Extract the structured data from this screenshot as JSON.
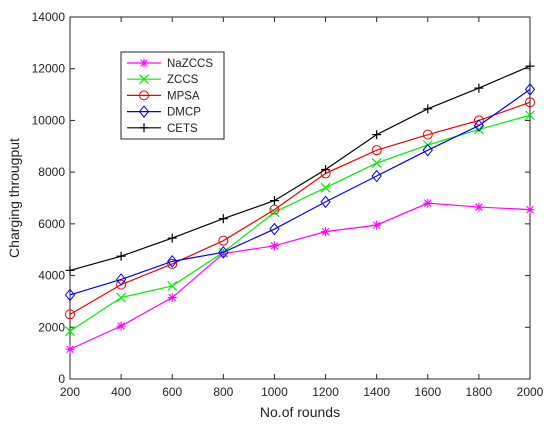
{
  "chart_data": {
    "type": "line",
    "title": "",
    "xlabel": "No.of rounds",
    "ylabel": "Charging througput",
    "x": [
      200,
      400,
      600,
      800,
      1000,
      1200,
      1400,
      1600,
      1800,
      2000
    ],
    "xlim": [
      200,
      2000
    ],
    "ylim": [
      0,
      14000
    ],
    "xticks": [
      "200",
      "400",
      "600",
      "800",
      "1000",
      "1200",
      "1400",
      "1600",
      "1800",
      "2000"
    ],
    "yticks": [
      "0",
      "2000",
      "4000",
      "6000",
      "8000",
      "10000",
      "12000",
      "14000"
    ],
    "grid": false,
    "legend_position": "top-left",
    "series": [
      {
        "name": "NaZCCS",
        "color": "#ff00ff",
        "marker": "asterisk",
        "values": [
          1150,
          2050,
          3150,
          4850,
          5150,
          5700,
          5950,
          6800,
          6650,
          6550
        ]
      },
      {
        "name": "ZCCS",
        "color": "#00ee00",
        "marker": "x",
        "values": [
          1850,
          3150,
          3600,
          4900,
          6450,
          7400,
          8350,
          9050,
          9650,
          10200
        ]
      },
      {
        "name": "MPSA",
        "color": "#ee0000",
        "marker": "circle",
        "values": [
          2500,
          3650,
          4450,
          5350,
          6550,
          7950,
          8850,
          9450,
          10000,
          10700
        ]
      },
      {
        "name": "DMCP",
        "color": "#0000ee",
        "marker": "diamond",
        "values": [
          3250,
          3850,
          4550,
          4900,
          5800,
          6850,
          7850,
          8850,
          9800,
          11200
        ]
      },
      {
        "name": "CETS",
        "color": "#000000",
        "marker": "plus",
        "values": [
          4200,
          4750,
          5450,
          6200,
          6900,
          8100,
          9450,
          10450,
          11250,
          12100
        ]
      }
    ]
  }
}
